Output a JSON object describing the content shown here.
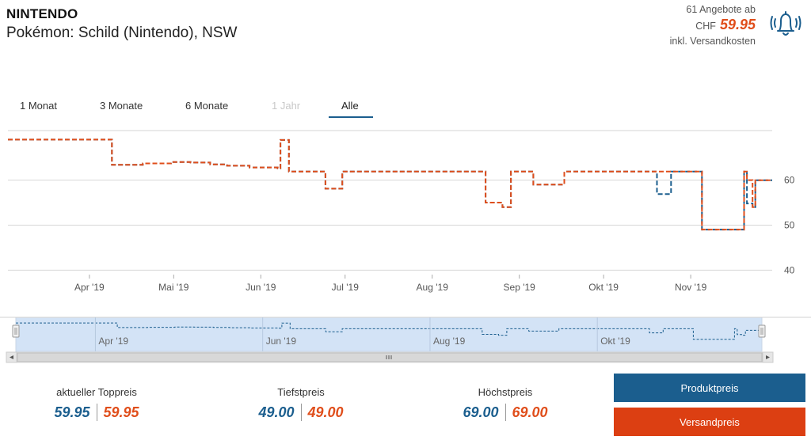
{
  "header": {
    "brand": "NINTENDO",
    "product": "Pokémon: Schild (Nintendo), NSW",
    "offers_text": "61 Angebote ab",
    "currency": "CHF",
    "best_price": "59.95",
    "shipping_note": "inkl. Versandkosten",
    "alert_icon": "bell-alert-icon"
  },
  "range_tabs": [
    {
      "label": "1 Monat",
      "state": "normal"
    },
    {
      "label": "3 Monate",
      "state": "normal"
    },
    {
      "label": "6 Monate",
      "state": "normal"
    },
    {
      "label": "1 Jahr",
      "state": "disabled"
    },
    {
      "label": "Alle",
      "state": "active"
    }
  ],
  "chart_data": {
    "type": "line",
    "title": "",
    "xlabel": "",
    "ylabel": "",
    "x_ticks": [
      "Apr '19",
      "Mai '19",
      "Jun '19",
      "Jul '19",
      "Aug '19",
      "Sep '19",
      "Okt '19",
      "Nov '19"
    ],
    "y_ticks": [
      40,
      50,
      60
    ],
    "ylim": [
      39,
      71
    ],
    "xlim": [
      "2019-03-03",
      "2019-11-30"
    ],
    "grid": true,
    "series": [
      {
        "color": "#1b5e8e",
        "style": "dashed-step",
        "points": [
          [
            "2019-03-03",
            69.0
          ],
          [
            "2019-04-08",
            69.0
          ],
          [
            "2019-04-09",
            63.4
          ],
          [
            "2019-04-20",
            63.7
          ],
          [
            "2019-04-30",
            64.0
          ],
          [
            "2019-05-07",
            63.9
          ],
          [
            "2019-05-14",
            63.5
          ],
          [
            "2019-05-20",
            63.2
          ],
          [
            "2019-05-28",
            62.8
          ],
          [
            "2019-06-07",
            62.6
          ],
          [
            "2019-06-08",
            68.9
          ],
          [
            "2019-06-10",
            68.9
          ],
          [
            "2019-06-11",
            61.9
          ],
          [
            "2019-06-23",
            61.9
          ],
          [
            "2019-06-24",
            58.1
          ],
          [
            "2019-06-29",
            58.1
          ],
          [
            "2019-06-30",
            61.9
          ],
          [
            "2019-08-19",
            61.9
          ],
          [
            "2019-08-20",
            55.0
          ],
          [
            "2019-08-25",
            55.0
          ],
          [
            "2019-08-26",
            54.0
          ],
          [
            "2019-08-28",
            54.0
          ],
          [
            "2019-08-29",
            61.9
          ],
          [
            "2019-09-05",
            61.9
          ],
          [
            "2019-09-06",
            59.0
          ],
          [
            "2019-09-16",
            59.0
          ],
          [
            "2019-09-17",
            61.9
          ],
          [
            "2019-10-19",
            61.9
          ],
          [
            "2019-10-20",
            56.9
          ],
          [
            "2019-10-24",
            56.9
          ],
          [
            "2019-10-25",
            61.9
          ],
          [
            "2019-11-04",
            61.9
          ],
          [
            "2019-11-05",
            49.0
          ],
          [
            "2019-11-19",
            49.0
          ],
          [
            "2019-11-20",
            61.9
          ],
          [
            "2019-11-21",
            54.8
          ],
          [
            "2019-11-23",
            54.0
          ],
          [
            "2019-11-24",
            59.95
          ],
          [
            "2019-11-30",
            59.95
          ]
        ]
      },
      {
        "color": "#e04e1b",
        "style": "dashed-step",
        "points": [
          [
            "2019-03-03",
            69.0
          ],
          [
            "2019-04-08",
            69.0
          ],
          [
            "2019-04-09",
            63.4
          ],
          [
            "2019-04-20",
            63.7
          ],
          [
            "2019-04-30",
            64.0
          ],
          [
            "2019-05-07",
            63.9
          ],
          [
            "2019-05-14",
            63.5
          ],
          [
            "2019-05-20",
            63.2
          ],
          [
            "2019-05-28",
            62.8
          ],
          [
            "2019-06-07",
            62.6
          ],
          [
            "2019-06-08",
            68.9
          ],
          [
            "2019-06-10",
            68.9
          ],
          [
            "2019-06-11",
            61.9
          ],
          [
            "2019-06-23",
            61.9
          ],
          [
            "2019-06-24",
            58.1
          ],
          [
            "2019-06-29",
            58.1
          ],
          [
            "2019-06-30",
            61.9
          ],
          [
            "2019-08-19",
            61.9
          ],
          [
            "2019-08-20",
            55.0
          ],
          [
            "2019-08-25",
            55.0
          ],
          [
            "2019-08-26",
            54.0
          ],
          [
            "2019-08-28",
            54.0
          ],
          [
            "2019-08-29",
            61.9
          ],
          [
            "2019-09-05",
            61.9
          ],
          [
            "2019-09-06",
            59.0
          ],
          [
            "2019-09-16",
            59.0
          ],
          [
            "2019-09-17",
            61.9
          ],
          [
            "2019-11-04",
            61.9
          ],
          [
            "2019-11-05",
            49.0
          ],
          [
            "2019-11-19",
            49.0
          ],
          [
            "2019-11-20",
            61.9
          ],
          [
            "2019-11-21",
            60.0
          ],
          [
            "2019-11-23",
            54.0
          ],
          [
            "2019-11-24",
            59.95
          ],
          [
            "2019-11-30",
            59.95
          ]
        ]
      }
    ],
    "navigator": {
      "x_ticks": [
        "Apr '19",
        "Jun '19",
        "Aug '19",
        "Okt '19"
      ],
      "selection": "full"
    }
  },
  "stats": [
    {
      "label": "aktueller Toppreis",
      "product_price": "59.95",
      "shipping_price": "59.95"
    },
    {
      "label": "Tiefstpreis",
      "product_price": "49.00",
      "shipping_price": "49.00"
    },
    {
      "label": "Höchstpreis",
      "product_price": "69.00",
      "shipping_price": "69.00"
    }
  ],
  "buttons": {
    "product_price": "Produktpreis",
    "shipping_price": "Versandpreis",
    "product_color": "#1b5e8e",
    "shipping_color": "#dc3f12"
  }
}
